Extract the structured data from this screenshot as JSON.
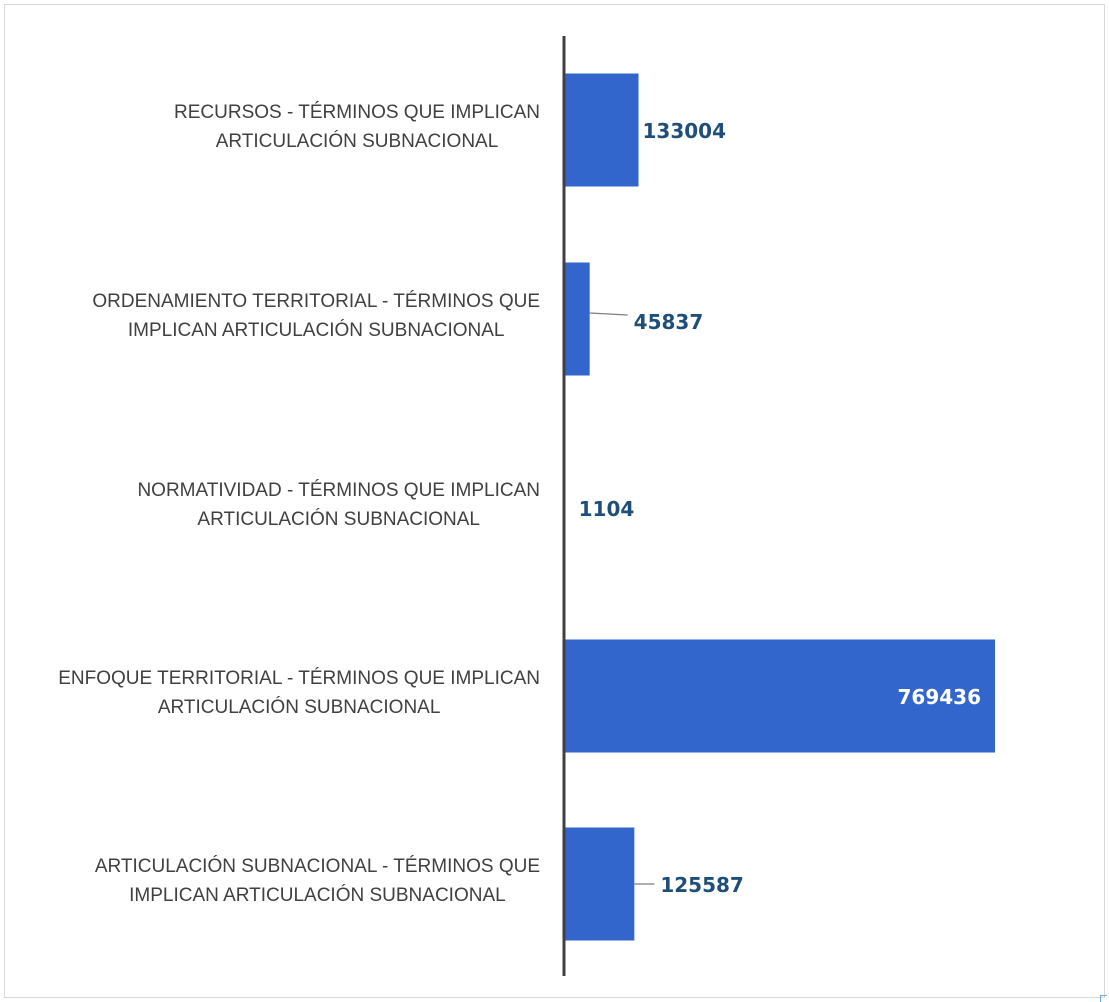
{
  "chart_data": {
    "type": "bar",
    "orientation": "horizontal",
    "title": "",
    "xlabel": "",
    "ylabel": "",
    "categories": [
      [
        "RECURSOS - TÉRMINOS QUE IMPLICAN",
        "ARTICULACIÓN SUBNACIONAL"
      ],
      [
        "ORDENAMIENTO TERRITORIAL - TÉRMINOS QUE",
        "IMPLICAN ARTICULACIÓN SUBNACIONAL"
      ],
      [
        "NORMATIVIDAD - TÉRMINOS QUE IMPLICAN",
        "ARTICULACIÓN SUBNACIONAL"
      ],
      [
        "ENFOQUE TERRITORIAL - TÉRMINOS QUE IMPLICAN",
        "ARTICULACIÓN SUBNACIONAL"
      ],
      [
        "ARTICULACIÓN SUBNACIONAL - TÉRMINOS QUE",
        "IMPLICAN ARTICULACIÓN SUBNACIONAL"
      ]
    ],
    "values": [
      133004,
      45837,
      1104,
      769436,
      125587
    ],
    "data_labels": [
      "133004",
      "45837",
      "1104",
      "769436",
      "125587"
    ],
    "xlim": [
      0,
      800000
    ],
    "grid": false,
    "legend": "none",
    "colors": {
      "bar": "#3366cc",
      "label_outside": "#1f4e79",
      "label_inside": "#ffffff",
      "axis": "#404040",
      "leader": "#7f7f7f"
    }
  }
}
